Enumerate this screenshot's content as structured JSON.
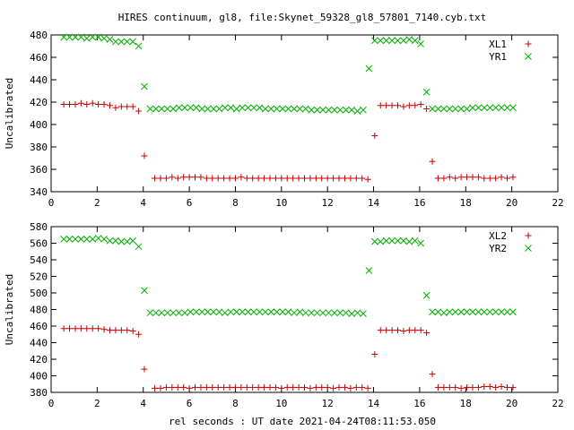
{
  "title": "HIRES continuum, gl8, file:Skynet_59328_gl8_57801_7140.cyb.txt",
  "xlabel": "rel seconds : UT date 2021-04-24T08:11:53.050",
  "colors": {
    "red": "#cc0000",
    "green": "#00b000"
  },
  "chart_data": [
    {
      "type": "scatter",
      "title": "HIRES continuum, gl8, file:Skynet_59328_gl8_57801_7140.cyb.txt",
      "xlabel": "",
      "ylabel": "Uncalibrated",
      "xlim": [
        0,
        22
      ],
      "ylim": [
        340,
        480
      ],
      "xticks": [
        0,
        2,
        4,
        6,
        8,
        10,
        12,
        14,
        16,
        18,
        20,
        22
      ],
      "yticks": [
        340,
        360,
        380,
        400,
        420,
        440,
        460,
        480
      ],
      "grid": false,
      "legend": "top-right",
      "x": [
        0.6,
        0.8,
        1.0,
        1.2,
        1.4,
        1.6,
        1.8,
        2.0,
        2.2,
        2.4,
        2.6,
        2.8,
        3.0,
        3.2,
        3.4,
        3.6,
        3.8,
        4.0,
        4.2,
        4.4,
        4.6,
        4.8,
        5.0,
        5.2,
        5.4,
        5.6,
        5.8,
        6.0,
        6.2,
        6.4,
        6.6,
        6.8,
        7.0,
        7.2,
        7.4,
        7.6,
        7.8,
        8.0,
        8.2,
        8.4,
        8.6,
        8.8,
        9.0,
        9.2,
        9.4,
        9.6,
        9.8,
        10.0,
        10.2,
        10.4,
        10.6,
        10.8,
        11.0,
        11.2,
        11.4,
        11.6,
        11.8,
        12.0,
        12.2,
        12.4,
        12.6,
        12.8,
        13.0,
        13.2,
        13.4,
        13.6,
        13.8,
        14.0,
        14.2,
        14.4,
        14.6,
        14.8,
        15.0,
        15.2,
        15.4,
        15.6,
        15.8,
        16.0,
        16.2,
        16.4,
        16.6,
        16.8,
        17.0,
        17.2,
        17.4,
        17.6,
        17.8,
        18.0,
        18.2,
        18.4,
        18.6,
        18.8,
        19.0,
        19.2,
        19.4,
        19.6,
        19.8,
        20.0,
        20.2
      ],
      "series": [
        {
          "name": "XL1",
          "marker": "plus",
          "color": "#cc0000",
          "x": [
            0.55,
            0.8,
            1.05,
            1.3,
            1.55,
            1.8,
            2.05,
            2.3,
            2.55,
            2.8,
            3.05,
            3.3,
            3.55,
            3.8,
            4.05,
            4.5,
            4.75,
            5.0,
            5.25,
            5.5,
            5.75,
            6.0,
            6.25,
            6.5,
            6.75,
            7.0,
            7.25,
            7.5,
            7.75,
            8.0,
            8.25,
            8.5,
            8.75,
            9.0,
            9.25,
            9.5,
            9.75,
            10.0,
            10.25,
            10.5,
            10.75,
            11.0,
            11.25,
            11.5,
            11.75,
            12.0,
            12.25,
            12.5,
            12.75,
            13.0,
            13.25,
            13.5,
            13.75,
            14.05,
            14.3,
            14.55,
            14.8,
            15.05,
            15.3,
            15.55,
            15.8,
            16.05,
            16.3,
            16.55,
            16.8,
            17.05,
            17.3,
            17.55,
            17.8,
            18.05,
            18.3,
            18.55,
            18.8,
            19.05,
            19.3,
            19.55,
            19.8,
            20.05
          ],
          "values": [
            418,
            418,
            418,
            419,
            418,
            419,
            418,
            418,
            417,
            415,
            416,
            416,
            416,
            412,
            372,
            352,
            352,
            352,
            353,
            352,
            353,
            353,
            353,
            353,
            352,
            352,
            352,
            352,
            352,
            352,
            353,
            352,
            352,
            352,
            352,
            352,
            352,
            352,
            352,
            352,
            352,
            352,
            352,
            352,
            352,
            352,
            352,
            352,
            352,
            352,
            352,
            352,
            351,
            390,
            417,
            417,
            417,
            417,
            416,
            417,
            417,
            418,
            414,
            367,
            352,
            352,
            353,
            352,
            353,
            353,
            353,
            353,
            352,
            352,
            352,
            353,
            352,
            353
          ]
        },
        {
          "name": "YR1",
          "marker": "cross",
          "color": "#00b000",
          "x": [
            0.55,
            0.8,
            1.05,
            1.3,
            1.55,
            1.8,
            2.05,
            2.3,
            2.55,
            2.8,
            3.05,
            3.3,
            3.55,
            3.8,
            4.05,
            4.3,
            4.55,
            4.8,
            5.05,
            5.3,
            5.55,
            5.8,
            6.05,
            6.3,
            6.55,
            6.8,
            7.05,
            7.3,
            7.55,
            7.8,
            8.05,
            8.3,
            8.55,
            8.8,
            9.05,
            9.3,
            9.55,
            9.8,
            10.05,
            10.3,
            10.55,
            10.8,
            11.05,
            11.3,
            11.55,
            11.8,
            12.05,
            12.3,
            12.55,
            12.8,
            13.05,
            13.3,
            13.55,
            13.8,
            14.05,
            14.3,
            14.55,
            14.8,
            15.05,
            15.3,
            15.55,
            15.8,
            16.05,
            16.3,
            16.55,
            16.8,
            17.05,
            17.3,
            17.55,
            17.8,
            18.05,
            18.3,
            18.55,
            18.8,
            19.05,
            19.3,
            19.55,
            19.8,
            20.05
          ],
          "values": [
            478,
            478,
            478,
            478,
            477,
            478,
            478,
            477,
            476,
            474,
            474,
            474,
            474,
            470,
            434,
            414,
            414,
            414,
            414,
            414,
            415,
            415,
            415,
            415,
            414,
            414,
            414,
            414,
            415,
            415,
            414,
            415,
            415,
            415,
            415,
            414,
            414,
            414,
            414,
            414,
            414,
            414,
            414,
            413,
            413,
            413,
            413,
            413,
            413,
            413,
            413,
            412,
            413,
            450,
            475,
            475,
            475,
            475,
            475,
            475,
            476,
            475,
            472,
            429,
            414,
            414,
            414,
            414,
            414,
            414,
            414,
            415,
            415,
            415,
            415,
            415,
            415,
            415,
            415
          ]
        }
      ]
    },
    {
      "type": "scatter",
      "title": "",
      "xlabel": "rel seconds : UT date 2021-04-24T08:11:53.050",
      "ylabel": "Uncalibrated",
      "xlim": [
        0,
        22
      ],
      "ylim": [
        380,
        580
      ],
      "xticks": [
        0,
        2,
        4,
        6,
        8,
        10,
        12,
        14,
        16,
        18,
        20,
        22
      ],
      "yticks": [
        380,
        400,
        420,
        440,
        460,
        480,
        500,
        520,
        540,
        560,
        580
      ],
      "grid": false,
      "legend": "top-right",
      "series": [
        {
          "name": "XL2",
          "marker": "plus",
          "color": "#cc0000",
          "x": [
            0.55,
            0.8,
            1.05,
            1.3,
            1.55,
            1.8,
            2.05,
            2.3,
            2.55,
            2.8,
            3.05,
            3.3,
            3.55,
            3.8,
            4.05,
            4.5,
            4.75,
            5.0,
            5.25,
            5.5,
            5.75,
            6.0,
            6.25,
            6.5,
            6.75,
            7.0,
            7.25,
            7.5,
            7.75,
            8.0,
            8.25,
            8.5,
            8.75,
            9.0,
            9.25,
            9.5,
            9.75,
            10.0,
            10.25,
            10.5,
            10.75,
            11.0,
            11.25,
            11.5,
            11.75,
            12.0,
            12.25,
            12.5,
            12.75,
            13.0,
            13.25,
            13.5,
            13.75,
            14.05,
            14.3,
            14.55,
            14.8,
            15.05,
            15.3,
            15.55,
            15.8,
            16.05,
            16.3,
            16.55,
            16.8,
            17.05,
            17.3,
            17.55,
            17.8,
            18.05,
            18.3,
            18.55,
            18.8,
            19.05,
            19.3,
            19.55,
            19.8,
            20.05
          ],
          "values": [
            457,
            457,
            457,
            457,
            457,
            457,
            457,
            456,
            455,
            455,
            455,
            455,
            454,
            450,
            408,
            385,
            385,
            386,
            386,
            386,
            386,
            385,
            386,
            386,
            386,
            386,
            386,
            386,
            386,
            386,
            386,
            386,
            386,
            386,
            386,
            386,
            386,
            385,
            386,
            386,
            386,
            386,
            385,
            386,
            386,
            386,
            385,
            386,
            386,
            385,
            386,
            386,
            385,
            426,
            455,
            455,
            455,
            455,
            454,
            455,
            455,
            455,
            452,
            402,
            386,
            386,
            386,
            386,
            385,
            386,
            386,
            386,
            387,
            387,
            386,
            387,
            386,
            386
          ]
        },
        {
          "name": "YR2",
          "marker": "cross",
          "color": "#00b000",
          "x": [
            0.55,
            0.8,
            1.05,
            1.3,
            1.55,
            1.8,
            2.05,
            2.3,
            2.55,
            2.8,
            3.05,
            3.3,
            3.55,
            3.8,
            4.05,
            4.3,
            4.55,
            4.8,
            5.05,
            5.3,
            5.55,
            5.8,
            6.05,
            6.3,
            6.55,
            6.8,
            7.05,
            7.3,
            7.55,
            7.8,
            8.05,
            8.3,
            8.55,
            8.8,
            9.05,
            9.3,
            9.55,
            9.8,
            10.05,
            10.3,
            10.55,
            10.8,
            11.05,
            11.3,
            11.55,
            11.8,
            12.05,
            12.3,
            12.55,
            12.8,
            13.05,
            13.3,
            13.55,
            13.8,
            14.05,
            14.3,
            14.55,
            14.8,
            15.05,
            15.3,
            15.55,
            15.8,
            16.05,
            16.3,
            16.55,
            16.8,
            17.05,
            17.3,
            17.55,
            17.8,
            18.05,
            18.3,
            18.55,
            18.8,
            19.05,
            19.3,
            19.55,
            19.8,
            20.05
          ],
          "values": [
            565,
            565,
            565,
            565,
            565,
            565,
            566,
            565,
            563,
            563,
            562,
            562,
            563,
            556,
            503,
            476,
            476,
            476,
            476,
            476,
            476,
            476,
            477,
            477,
            477,
            477,
            477,
            477,
            476,
            477,
            477,
            477,
            477,
            477,
            477,
            477,
            477,
            477,
            477,
            477,
            476,
            477,
            476,
            476,
            476,
            476,
            476,
            476,
            476,
            476,
            475,
            476,
            475,
            527,
            562,
            562,
            563,
            563,
            563,
            563,
            562,
            563,
            560,
            497,
            477,
            477,
            476,
            477,
            477,
            477,
            477,
            477,
            477,
            477,
            477,
            477,
            477,
            477,
            477
          ]
        }
      ]
    }
  ]
}
